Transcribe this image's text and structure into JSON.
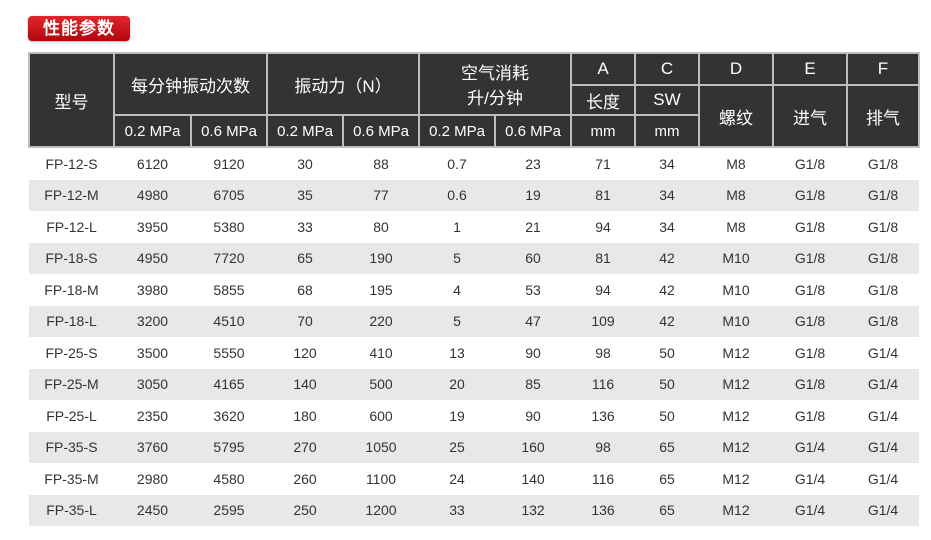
{
  "title": "性能参数",
  "header": {
    "model": "型号",
    "freq": "每分钟振动次数",
    "force": "振动力（N）",
    "air_line1": "空气消耗",
    "air_line2": "升/分钟",
    "a": "A",
    "c": "C",
    "d": "D",
    "e": "E",
    "f": "F",
    "length": "长度",
    "sw": "SW",
    "thread": "螺纹",
    "inlet": "进气",
    "outlet": "排气",
    "p02": "0.2 MPa",
    "p06": "0.6 MPa",
    "mm": "mm"
  },
  "rows": [
    [
      "FP-12-S",
      "6120",
      "9120",
      "30",
      "88",
      "0.7",
      "23",
      "71",
      "34",
      "M8",
      "G1/8",
      "G1/8"
    ],
    [
      "FP-12-M",
      "4980",
      "6705",
      "35",
      "77",
      "0.6",
      "19",
      "81",
      "34",
      "M8",
      "G1/8",
      "G1/8"
    ],
    [
      "FP-12-L",
      "3950",
      "5380",
      "33",
      "80",
      "1",
      "21",
      "94",
      "34",
      "M8",
      "G1/8",
      "G1/8"
    ],
    [
      "FP-18-S",
      "4950",
      "7720",
      "65",
      "190",
      "5",
      "60",
      "81",
      "42",
      "M10",
      "G1/8",
      "G1/8"
    ],
    [
      "FP-18-M",
      "3980",
      "5855",
      "68",
      "195",
      "4",
      "53",
      "94",
      "42",
      "M10",
      "G1/8",
      "G1/8"
    ],
    [
      "FP-18-L",
      "3200",
      "4510",
      "70",
      "220",
      "5",
      "47",
      "109",
      "42",
      "M10",
      "G1/8",
      "G1/8"
    ],
    [
      "FP-25-S",
      "3500",
      "5550",
      "120",
      "410",
      "13",
      "90",
      "98",
      "50",
      "M12",
      "G1/8",
      "G1/4"
    ],
    [
      "FP-25-M",
      "3050",
      "4165",
      "140",
      "500",
      "20",
      "85",
      "116",
      "50",
      "M12",
      "G1/8",
      "G1/4"
    ],
    [
      "FP-25-L",
      "2350",
      "3620",
      "180",
      "600",
      "19",
      "90",
      "136",
      "50",
      "M12",
      "G1/8",
      "G1/4"
    ],
    [
      "FP-35-S",
      "3760",
      "5795",
      "270",
      "1050",
      "25",
      "160",
      "98",
      "65",
      "M12",
      "G1/4",
      "G1/4"
    ],
    [
      "FP-35-M",
      "2980",
      "4580",
      "260",
      "1100",
      "24",
      "140",
      "116",
      "65",
      "M12",
      "G1/4",
      "G1/4"
    ],
    [
      "FP-35-L",
      "2450",
      "2595",
      "250",
      "1200",
      "33",
      "132",
      "136",
      "65",
      "M12",
      "G1/4",
      "G1/4"
    ]
  ]
}
